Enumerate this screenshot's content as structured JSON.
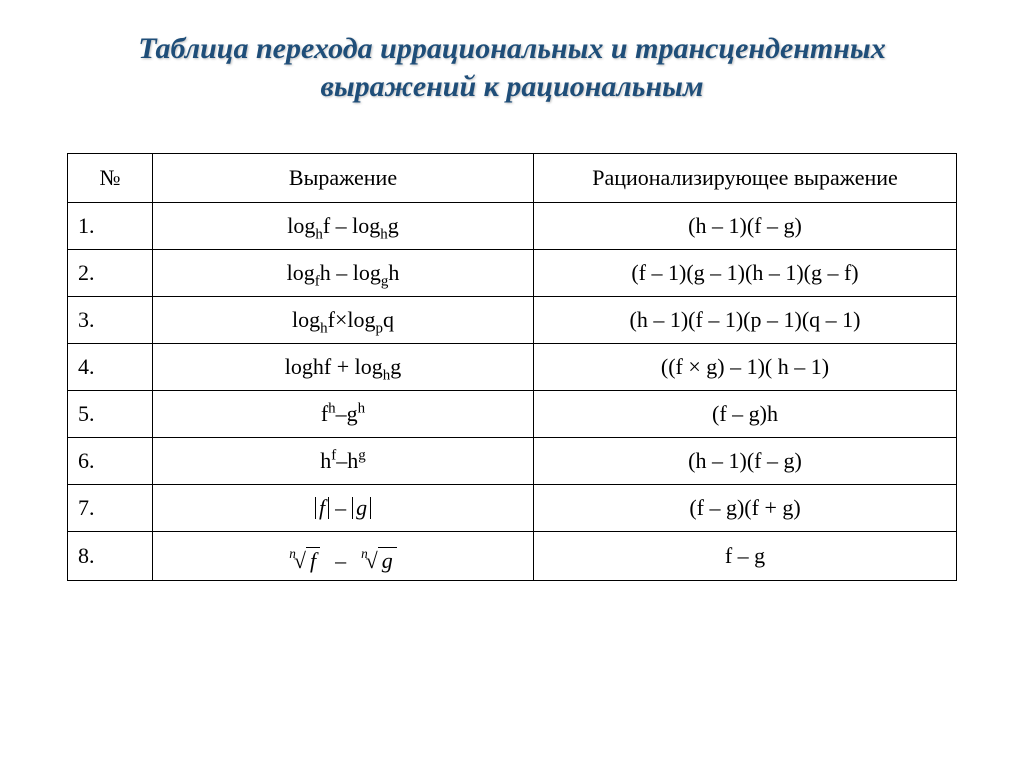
{
  "title": "Таблица перехода иррациональных и трансцендентных выражений к рациональным",
  "table": {
    "headers": {
      "num": "№",
      "expr": "Выражение",
      "rat": "Рационализирующее выражение"
    },
    "rows": [
      {
        "num": "1.",
        "expr_html": "log<sub>h</sub>f – log<sub>h</sub>g",
        "rat_html": "(h – 1)(f – g)"
      },
      {
        "num": "2.",
        "expr_html": "log<sub>f</sub>h – log<sub>g</sub>h",
        "rat_html": "(f – 1)(g – 1)(h – 1)(g – f)"
      },
      {
        "num": "3.",
        "expr_html": "log<sub>h</sub>f×log<sub>p</sub>q",
        "rat_html": "(h – 1)(f – 1)(p – 1)(q – 1)"
      },
      {
        "num": "4.",
        "expr_html": "loghf + log<sub>h</sub>g",
        "rat_html": "((f × g) – 1)( h – 1)"
      },
      {
        "num": "5.",
        "expr_html": "f<sup>h</sup>–g<sup>h</sup>",
        "rat_html": "(f – g)h"
      },
      {
        "num": "6.",
        "expr_html": "h<sup>f</sup>–h<sup>g</sup>",
        "rat_html": "(h – 1)(f – g)"
      },
      {
        "num": "7.",
        "expr_html": "<span class=\"math-inline\"><span class=\"abs\"><i>f</i></span> – <span class=\"abs\"><i>g</i></span></span>",
        "rat_html": "(f – g)(f + g)"
      },
      {
        "num": "8.",
        "expr_html": "<span class=\"math-inline\"><span class=\"root\"><span class=\"index\"><i>n</i></span><span>√<span style=\"border-top:1px solid #000; padding:0 4px;\"><i>f</i></span></span></span>&nbsp;&nbsp;–&nbsp;&nbsp;<span class=\"root\"><span class=\"index\"><i>n</i></span><span>√<span style=\"border-top:1px solid #000; padding:0 4px;\"><i>g</i></span></span></span></span>",
        "rat_html": "f – g"
      }
    ]
  },
  "style": {
    "title_color": "#1f4e79",
    "title_fontsize": 30,
    "body_fontsize": 22,
    "border_color": "#000000",
    "background_color": "#ffffff",
    "col_widths": {
      "num": 64,
      "expr": 360
    }
  }
}
